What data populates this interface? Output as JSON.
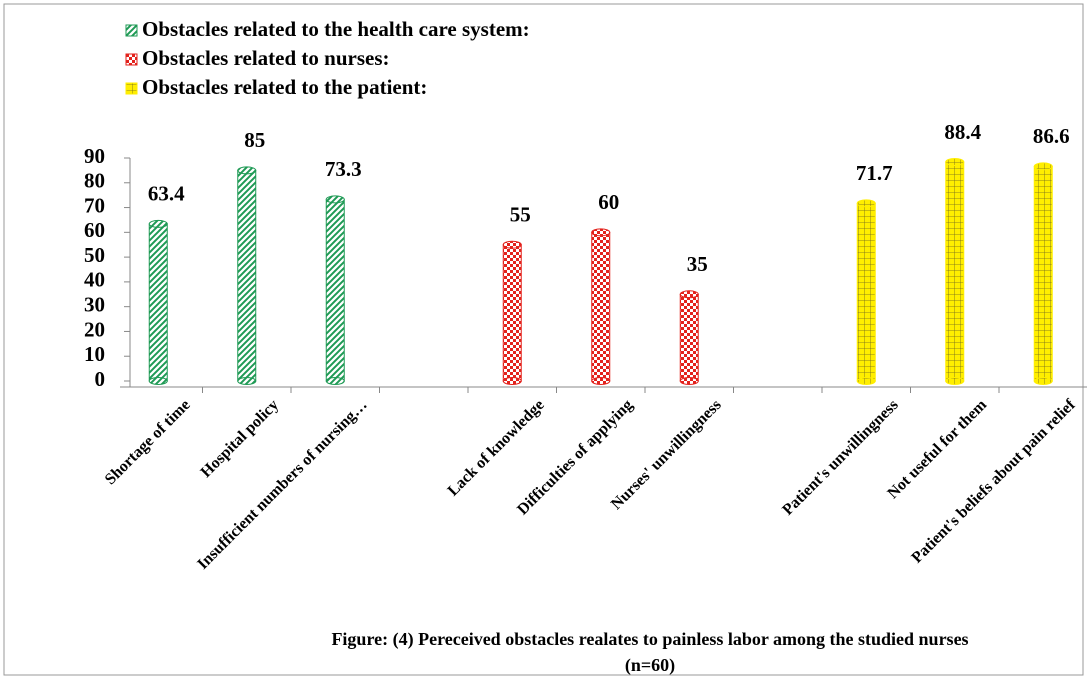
{
  "chart_data": {
    "type": "bar",
    "categories": [
      "Shortage of time",
      "Hospital policy",
      "Insufficient numbers of nursing…",
      null,
      "Lack of knowledge",
      "Difficulties of applying",
      "Nurses' unwillingness",
      null,
      "Patient's unwillingness",
      "Not useful for them",
      "Patient's beliefs about pain relief"
    ],
    "series": [
      {
        "name": "Obstacles related to the health care system:",
        "color": "#1f9a55",
        "values": [
          63.4,
          85,
          73.3,
          null,
          null,
          null,
          null,
          null,
          null,
          null,
          null
        ]
      },
      {
        "name": "Obstacles related to nurses:",
        "color": "#e3221c",
        "values": [
          null,
          null,
          null,
          null,
          55,
          60,
          35,
          null,
          null,
          null,
          null
        ]
      },
      {
        "name": "Obstacles related to the patient:",
        "color": "#ffee00",
        "values": [
          null,
          null,
          null,
          null,
          null,
          null,
          null,
          null,
          71.7,
          88.4,
          86.6
        ]
      }
    ],
    "ylim": [
      0,
      90
    ],
    "yticks": [
      0,
      10,
      20,
      30,
      40,
      50,
      60,
      70,
      80,
      90
    ],
    "grid": false,
    "legend": "top",
    "caption": "Figure: (4) Pereceived obstacles realates to painless labor among the studied nurses (n=60)"
  }
}
